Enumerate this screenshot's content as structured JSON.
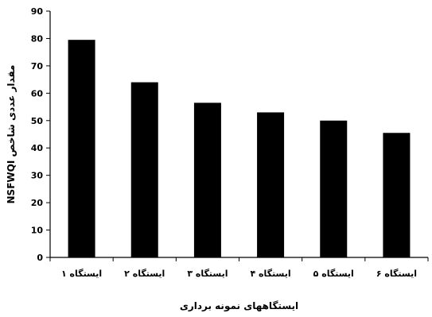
{
  "chart_data": {
    "type": "bar",
    "categories": [
      "ایستگاه ۱",
      "ایستگاه ۲",
      "ایستگاه ۳",
      "ایستگاه ۴",
      "ایستگاه ۵",
      "ایستگاه ۶"
    ],
    "values": [
      79.5,
      64,
      56.5,
      53,
      50,
      45.5
    ],
    "xlabel": "ایستگاههای نمونه برداری",
    "ylabel": "مقدار عددی شاخص NSFWQI",
    "ylim": [
      0,
      90
    ],
    "yticks": [
      0,
      10,
      20,
      30,
      40,
      50,
      60,
      70,
      80,
      90
    ],
    "grid": false,
    "bar_color": "#000000"
  }
}
